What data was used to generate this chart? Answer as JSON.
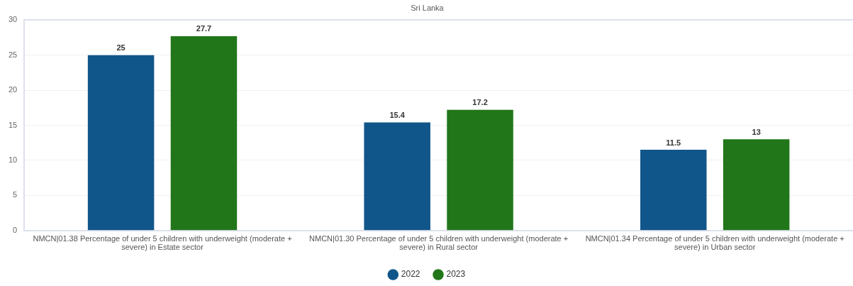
{
  "chart_data": {
    "type": "bar",
    "title": "Sri Lanka",
    "categories": [
      "NMCN|01.38 Percentage of under 5 children with underweight (moderate + severe) in Estate sector",
      "NMCN|01.30 Percentage of under 5 children with underweight (moderate + severe) in Rural sector",
      "NMCN|01.34 Percentage of under 5 children with underweight (moderate + severe) in Urban sector"
    ],
    "series": [
      {
        "name": "2022",
        "color": "#11568a",
        "values": [
          25,
          15.4,
          11.5
        ]
      },
      {
        "name": "2023",
        "color": "#217619",
        "values": [
          27.7,
          17.2,
          13
        ]
      }
    ],
    "ylim": [
      0,
      30
    ],
    "yticks": [
      0,
      5,
      10,
      15,
      20,
      25,
      30
    ],
    "grid": "y",
    "legend": "bottom",
    "data_labels": true
  }
}
